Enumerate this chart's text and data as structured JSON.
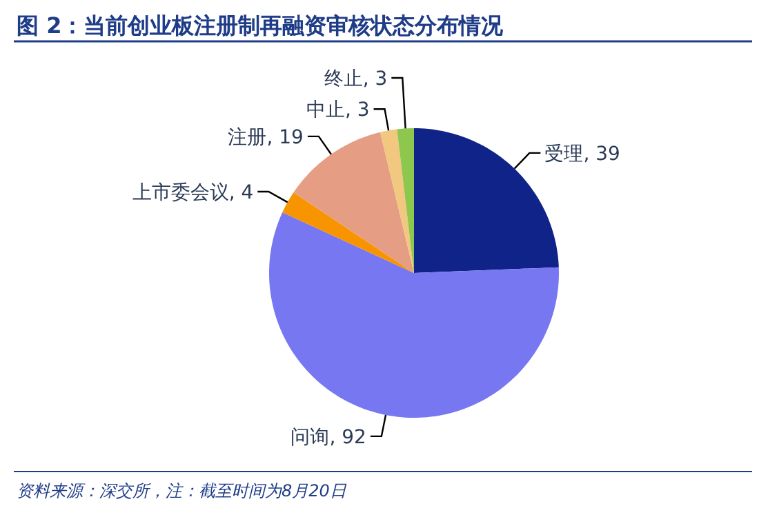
{
  "chart_data": {
    "type": "pie",
    "title": "图 2：当前创业板注册制再融资审核状态分布情况",
    "categories": [
      "受理",
      "问询",
      "上市委会议",
      "注册",
      "中止",
      "终止"
    ],
    "values": [
      39,
      92,
      4,
      19,
      3,
      3
    ],
    "colors": [
      "#0f2388",
      "#7777f2",
      "#f79400",
      "#e59e84",
      "#f2c77f",
      "#8dc74d"
    ],
    "value_labels": [
      ", 39",
      ", 92",
      ", 4",
      ", 19",
      ", 3",
      ", 3"
    ],
    "annotations": [
      "资料来源：深交所，注：截至时间为8月20日"
    ]
  }
}
